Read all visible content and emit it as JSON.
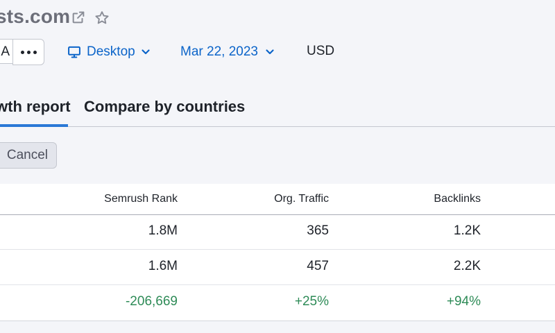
{
  "header": {
    "domain_title": "sts.com",
    "region_label": "A",
    "device_label": "Desktop",
    "date_label": "Mar 22, 2023",
    "currency_label": "USD"
  },
  "tabs": [
    {
      "label": "wth report",
      "active": true
    },
    {
      "label": "Compare by countries",
      "active": false
    }
  ],
  "actions": {
    "cancel_label": "Cancel"
  },
  "table": {
    "columns": [
      "Semrush Rank",
      "Org. Traffic",
      "Backlinks"
    ],
    "rows": [
      [
        "1.8M",
        "365",
        "1.2K"
      ],
      [
        "1.6M",
        "457",
        "2.2K"
      ],
      [
        "-206,669",
        "+25%",
        "+94%"
      ]
    ]
  },
  "colors": {
    "accent": "#2a78d6",
    "link": "#0b64c9",
    "positive": "#2e8b57",
    "background": "#f4f5f9"
  },
  "icons": [
    "external-link-icon",
    "star-icon",
    "more-dots-icon",
    "monitor-icon",
    "chevron-down-icon"
  ]
}
